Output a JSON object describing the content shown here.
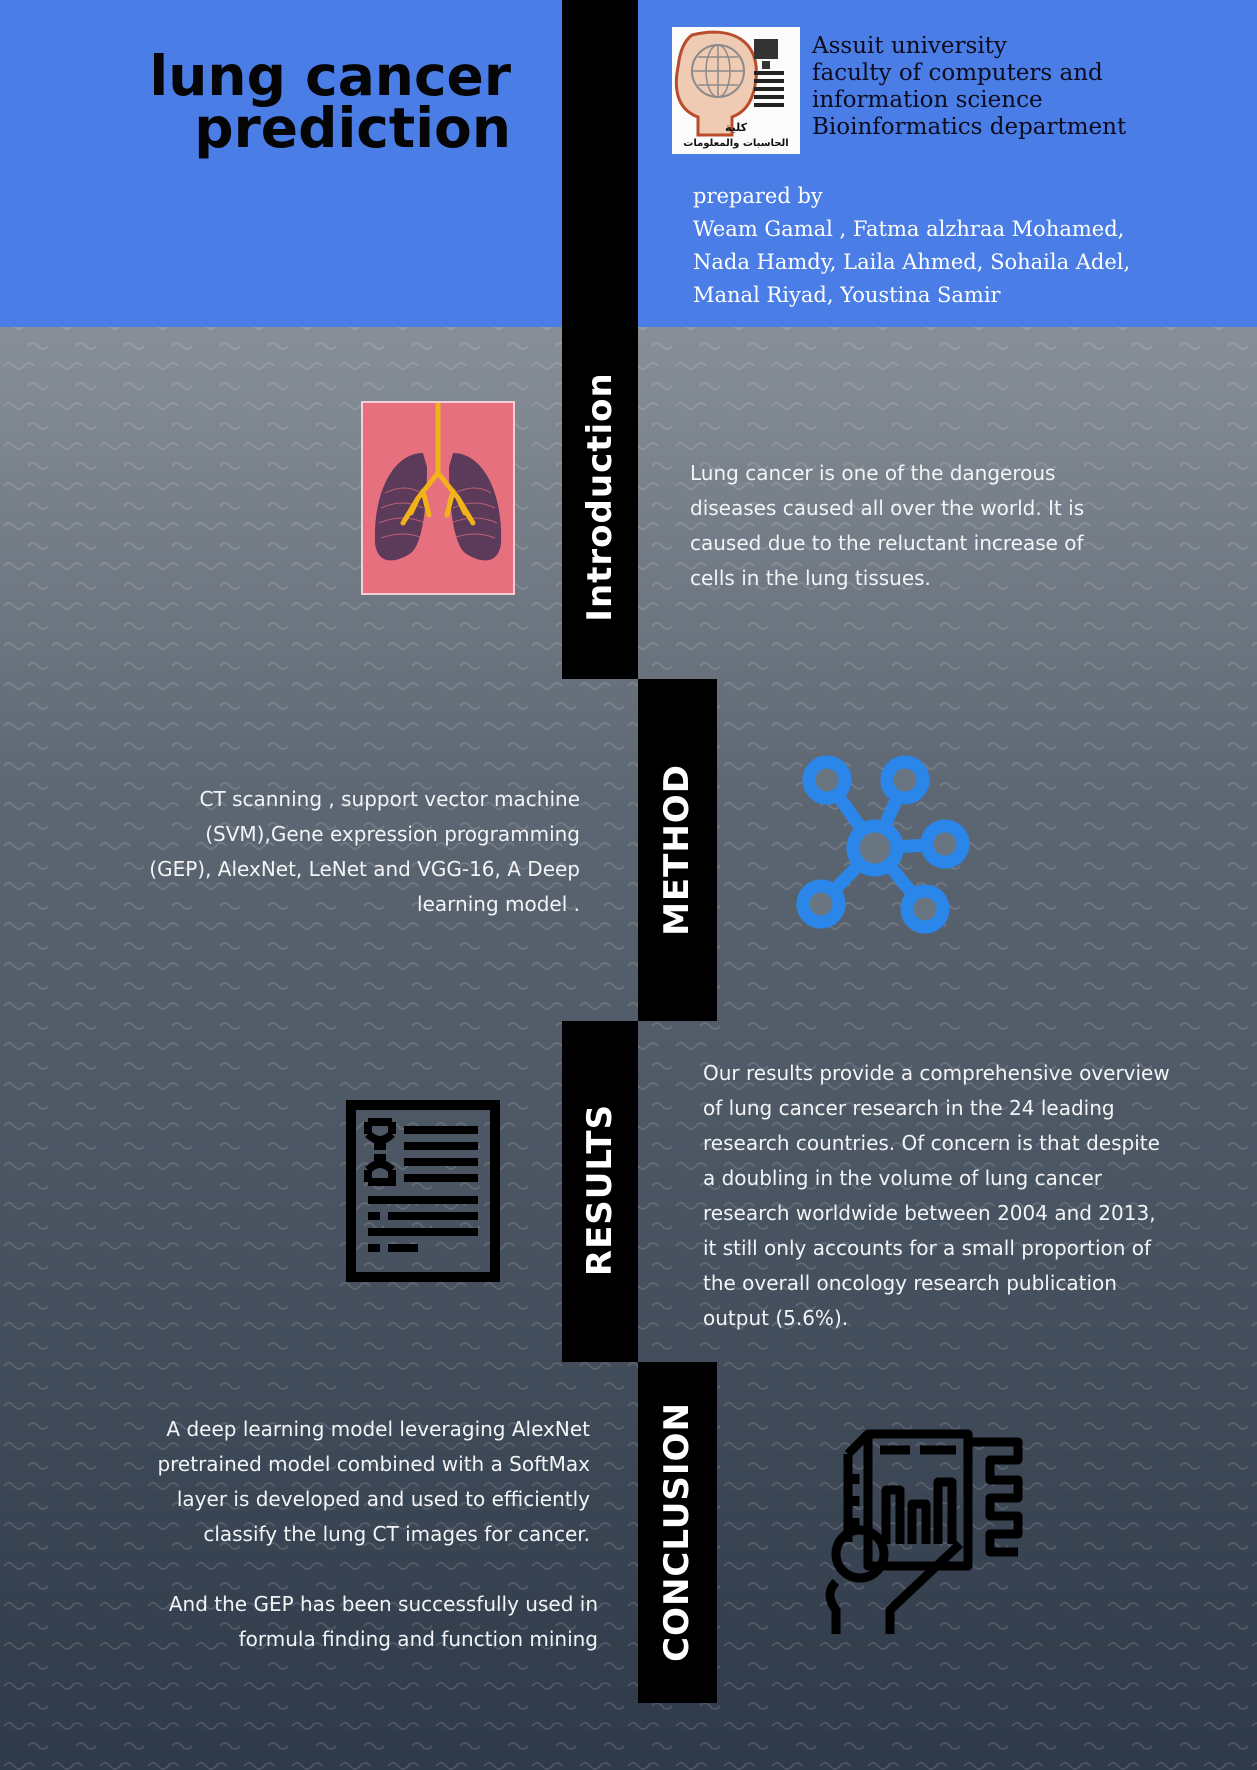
{
  "header": {
    "title_line1": "lung cancer",
    "title_line2": "prediction",
    "institution": [
      "Assuit university",
      "faculty of computers and",
      "information science",
      "Bioinformatics department"
    ],
    "prepared_label": "prepared by",
    "authors": [
      "Weam Gamal , Fatma alzhraa Mohamed,",
      "Nada Hamdy, Laila Ahmed, Sohaila Adel,",
      "Manal Riyad, Youstina Samir"
    ],
    "logo_text_line1": "كلية",
    "logo_text_line2": "الحاسبات والمعلومات"
  },
  "sections": {
    "introduction": {
      "label": "Introduction",
      "text": "Lung cancer is one of the dangerous diseases caused all over the world.  It is caused due to the reluctant increase of cells in the lung tissues."
    },
    "method": {
      "label": "METHOD",
      "text": "CT scanning , support vector machine (SVM),Gene expression programming (GEP), AlexNet, LeNet and VGG-16, A Deep learning model ."
    },
    "results": {
      "label": "RESULTS",
      "text": "Our results provide a comprehensive overview of lung cancer research in the 24 leading research countries. Of concern is that despite a doubling in the volume of lung cancer research worldwide between 2004 and 2013, it still only accounts for a small proportion of the overall oncology research publication output (5.6%)."
    },
    "conclusion": {
      "label": "CONCLUSION",
      "text_1": "A deep learning model leveraging AlexNet pretrained model combined with a SoftMax layer is developed and used to efficiently classify the lung CT images for cancer.",
      "text_2": "And the GEP has been successfully used in formula finding and function mining"
    }
  },
  "colors": {
    "header_blue": "#4a7de6",
    "bar_black": "#000000",
    "network_icon_blue": "#2a86e8",
    "lungs_bg_pink": "#e7707e",
    "airway_yellow": "#f2b21a"
  },
  "icons": [
    "university-logo",
    "lungs-image",
    "network-icon",
    "document-icon",
    "dashboard-icon"
  ]
}
